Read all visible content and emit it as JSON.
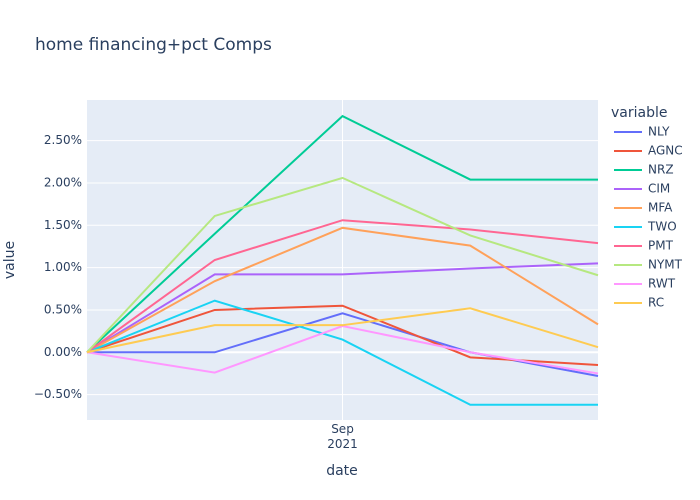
{
  "chart_data": {
    "type": "line",
    "title": "home financing+pct Comps",
    "x_label": "date",
    "y_label": "value",
    "legend_title": "variable",
    "categories": [
      null,
      null,
      "Sep 2021",
      null,
      null
    ],
    "xlim": [
      0,
      4
    ],
    "ylim": [
      -0.8,
      2.98
    ],
    "yticks": [
      {
        "value": -0.5,
        "label": "−0.50%"
      },
      {
        "value": 0,
        "label": "0.00%"
      },
      {
        "value": 0.5,
        "label": "0.50%"
      },
      {
        "value": 1,
        "label": "1.00%"
      },
      {
        "value": 1.5,
        "label": "1.50%"
      },
      {
        "value": 2,
        "label": "2.00%"
      },
      {
        "value": 2.5,
        "label": "2.50%"
      }
    ],
    "grid": true,
    "series": [
      {
        "name": "NLY",
        "color": "#636efa",
        "values": [
          0,
          0,
          0.46,
          0,
          -0.28
        ]
      },
      {
        "name": "AGNC",
        "color": "#EF553B",
        "values": [
          0,
          0.5,
          0.55,
          -0.06,
          -0.15
        ]
      },
      {
        "name": "NRZ",
        "color": "#00cc96",
        "values": [
          0,
          1.4,
          2.79,
          2.04,
          2.04
        ]
      },
      {
        "name": "CIM",
        "color": "#ab63fa",
        "values": [
          0,
          0.92,
          0.92,
          0.99,
          1.05
        ]
      },
      {
        "name": "MFA",
        "color": "#FFA15A",
        "values": [
          0,
          0.84,
          1.47,
          1.26,
          0.33
        ]
      },
      {
        "name": "TWO",
        "color": "#19d3f3",
        "values": [
          0,
          0.61,
          0.15,
          -0.62,
          -0.62
        ]
      },
      {
        "name": "PMT",
        "color": "#FF6692",
        "values": [
          0,
          1.09,
          1.56,
          1.45,
          1.29
        ]
      },
      {
        "name": "NYMT",
        "color": "#B6E880",
        "values": [
          0,
          1.61,
          2.06,
          1.38,
          0.91
        ]
      },
      {
        "name": "RWT",
        "color": "#FF97FF",
        "values": [
          0,
          -0.24,
          0.31,
          0,
          -0.25
        ]
      },
      {
        "name": "RC",
        "color": "#FECB52",
        "values": [
          0,
          0.32,
          0.32,
          0.52,
          0.06
        ]
      }
    ]
  }
}
